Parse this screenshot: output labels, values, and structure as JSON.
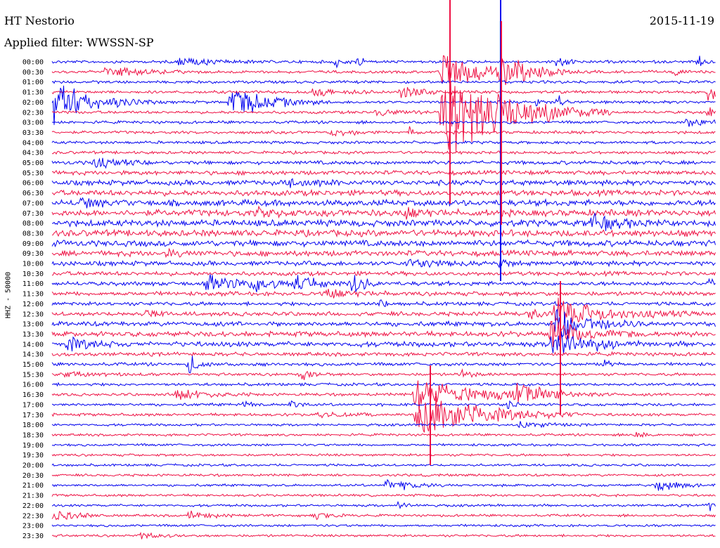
{
  "header": {
    "station": "HT Nestorio",
    "date": "2015-11-19",
    "filter_text": "Applied filter: WWSSN-SP"
  },
  "chart_data": {
    "type": "line",
    "ylabel": "HHZ - 50000",
    "row_labels": [
      "00:00",
      "00:30",
      "01:00",
      "01:30",
      "02:00",
      "02:30",
      "03:00",
      "03:30",
      "04:00",
      "04:30",
      "05:00",
      "05:30",
      "06:00",
      "06:30",
      "07:00",
      "07:30",
      "08:00",
      "08:30",
      "09:00",
      "09:30",
      "10:00",
      "10:30",
      "11:00",
      "11:30",
      "12:00",
      "12:30",
      "13:00",
      "13:30",
      "14:00",
      "14:30",
      "15:00",
      "15:30",
      "16:00",
      "16:30",
      "17:00",
      "17:30",
      "18:00",
      "18:30",
      "19:00",
      "19:30",
      "20:00",
      "20:30",
      "21:00",
      "21:30",
      "22:00",
      "22:30",
      "23:00",
      "23:30"
    ],
    "trace_colors": [
      "#0000ee",
      "#ee1144"
    ],
    "noise_level": [
      0.2,
      0.2,
      0.2,
      0.2,
      0.2,
      0.2,
      0.2,
      0.2,
      0.2,
      0.2,
      0.3,
      0.35,
      0.45,
      0.5,
      0.55,
      0.6,
      0.6,
      0.6,
      0.55,
      0.5,
      0.4,
      0.35,
      0.35,
      0.35,
      0.3,
      0.35,
      0.4,
      0.45,
      0.45,
      0.3,
      0.25,
      0.2,
      0.2,
      0.2,
      0.2,
      0.2,
      0.15,
      0.15,
      0.15,
      0.15,
      0.15,
      0.15,
      0.15,
      0.15,
      0.15,
      0.15,
      0.15,
      0.15
    ]
  }
}
